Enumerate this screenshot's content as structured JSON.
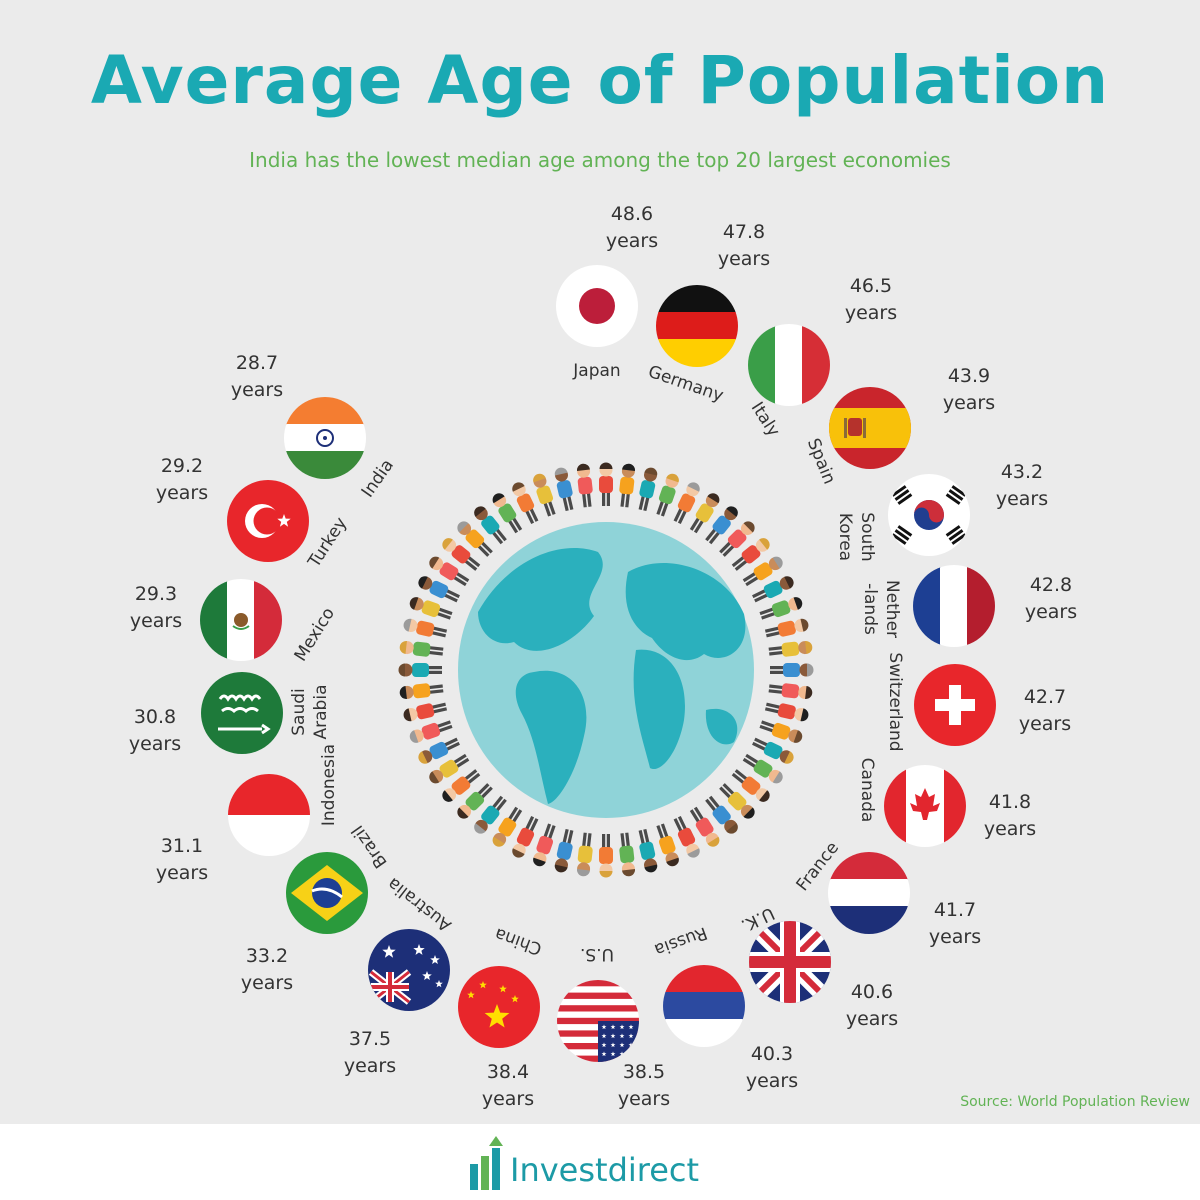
{
  "title": "Average Age of Population",
  "subtitle": "India has the lowest median age among the top 20 largest economies",
  "source": "Source: World Population Review",
  "brand": "Investdirect",
  "colors": {
    "title": "#1aa9b3",
    "subtitle": "#62b355",
    "text": "#333333",
    "globe_ocean": "#8fd3d8",
    "globe_land": "#2bb0bd",
    "brand": "#1c9aa6"
  },
  "chart_data": {
    "type": "radial-flag-ranking",
    "unit": "years",
    "series": [
      {
        "country": "Japan",
        "value": 48.6,
        "flag": "japan"
      },
      {
        "country": "Germany",
        "value": 47.8,
        "flag": "germany"
      },
      {
        "country": "Italy",
        "value": 46.5,
        "flag": "italy"
      },
      {
        "country": "Spain",
        "value": 43.9,
        "flag": "spain"
      },
      {
        "country": "South Korea",
        "value": 43.2,
        "flag": "south-korea"
      },
      {
        "country": "Netherlands",
        "value": 42.8,
        "flag": "netherlands"
      },
      {
        "country": "Switzerland",
        "value": 42.7,
        "flag": "switzerland"
      },
      {
        "country": "Canada",
        "value": 41.8,
        "flag": "canada"
      },
      {
        "country": "France",
        "value": 41.7,
        "flag": "france"
      },
      {
        "country": "U.K.",
        "value": 40.6,
        "flag": "uk"
      },
      {
        "country": "Russia",
        "value": 40.3,
        "flag": "russia"
      },
      {
        "country": "U.S.",
        "value": 38.5,
        "flag": "us"
      },
      {
        "country": "China",
        "value": 38.4,
        "flag": "china"
      },
      {
        "country": "Australia",
        "value": 37.5,
        "flag": "australia"
      },
      {
        "country": "Brazil",
        "value": 33.2,
        "flag": "brazil"
      },
      {
        "country": "Indonesia",
        "value": 31.1,
        "flag": "indonesia"
      },
      {
        "country": "Saudi Arabia",
        "value": 30.8,
        "flag": "saudi-arabia"
      },
      {
        "country": "Mexico",
        "value": 29.3,
        "flag": "mexico"
      },
      {
        "country": "Turkey",
        "value": 29.2,
        "flag": "turkey"
      },
      {
        "country": "India",
        "value": 28.7,
        "flag": "india"
      }
    ]
  }
}
